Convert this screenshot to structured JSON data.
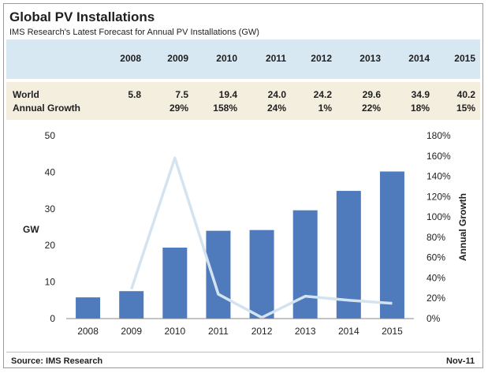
{
  "title": "Global PV Installations",
  "subtitle": "IMS Research's Latest Forecast for Annual PV Installations  (GW)",
  "table": {
    "years": [
      "2008",
      "2009",
      "2010",
      "2011",
      "2012",
      "2013",
      "2014",
      "2015"
    ],
    "rows": [
      {
        "label": "World",
        "values": [
          "5.8",
          "7.5",
          "19.4",
          "24.0",
          "24.2",
          "29.6",
          "34.9",
          "40.2"
        ]
      },
      {
        "label": "Annual Growth",
        "values": [
          "",
          "29%",
          "158%",
          "24%",
          "1%",
          "22%",
          "18%",
          "15%"
        ]
      }
    ]
  },
  "footer": {
    "source": "Source: IMS Research",
    "date": "Nov-11"
  },
  "colors": {
    "bar": "#4f7bbd",
    "line": "#d4e3f0",
    "years_band": "#d8e8f3",
    "data_band": "#f4eedf"
  },
  "chart_data": {
    "type": "bar",
    "categories": [
      "2008",
      "2009",
      "2010",
      "2011",
      "2012",
      "2013",
      "2014",
      "2015"
    ],
    "series": [
      {
        "type": "bar",
        "axis": "left",
        "values": [
          5.8,
          7.5,
          19.4,
          24.0,
          24.2,
          29.6,
          34.9,
          40.2
        ]
      },
      {
        "type": "line",
        "axis": "right",
        "values": [
          null,
          29,
          158,
          24,
          1,
          22,
          18,
          15
        ]
      }
    ],
    "ylabel": "GW",
    "ylim": [
      0,
      50
    ],
    "yticks": [
      "0",
      "10",
      "20",
      "30",
      "40",
      "50"
    ],
    "y2label": "Annual Growth",
    "y2lim": [
      0,
      180
    ],
    "y2ticks": [
      "0%",
      "20%",
      "40%",
      "60%",
      "80%",
      "100%",
      "120%",
      "140%",
      "160%",
      "180%"
    ],
    "grid": false,
    "legend": "none"
  }
}
